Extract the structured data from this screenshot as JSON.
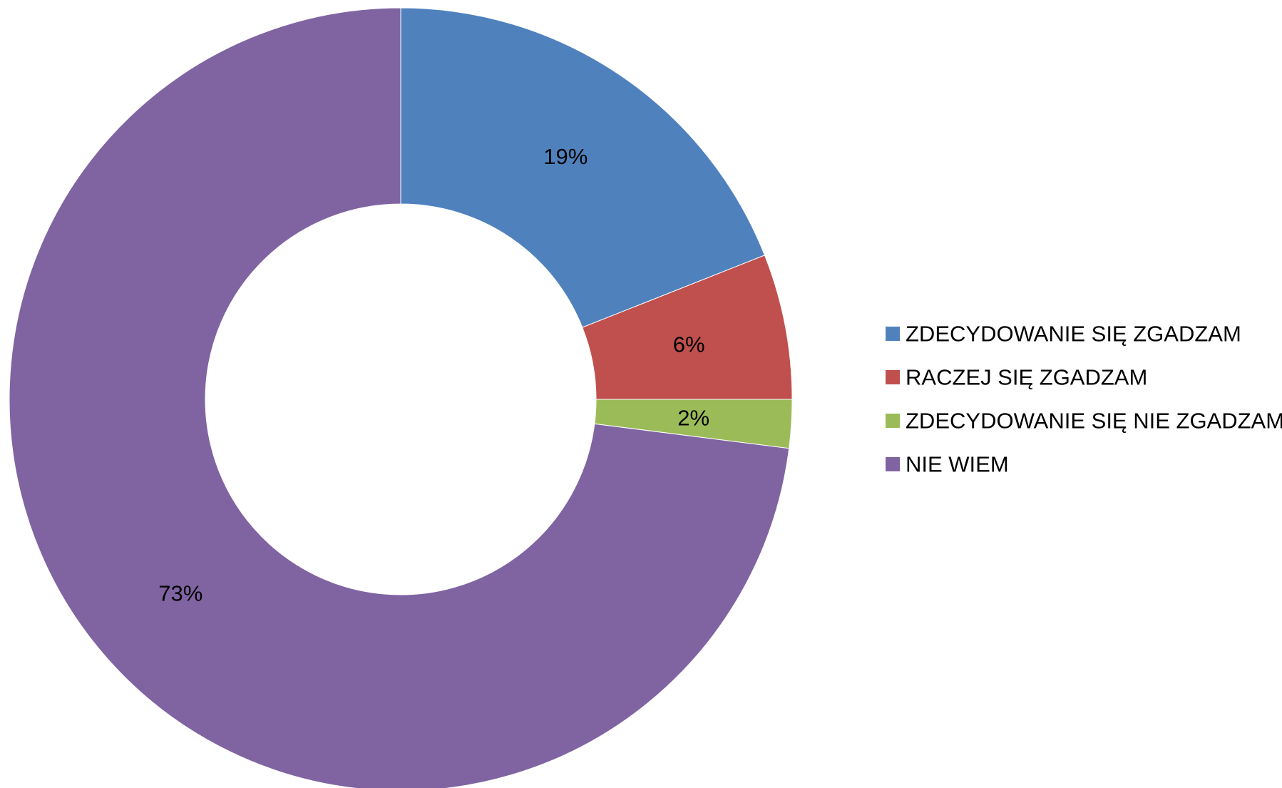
{
  "chart_data": {
    "type": "pie",
    "variant": "donut",
    "legend_position": "right",
    "series": [
      {
        "name": "ZDECYDOWANIE SIĘ ZGADZAM",
        "value": 19,
        "label": "19%",
        "color": "#4f81bd"
      },
      {
        "name": "RACZEJ SIĘ ZGADZAM",
        "value": 6,
        "label": "6%",
        "color": "#c0504d"
      },
      {
        "name": "ZDECYDOWANIE SIĘ NIE ZGADZAM",
        "value": 2,
        "label": "2%",
        "color": "#9bbb59"
      },
      {
        "name": "NIE WIEM",
        "value": 73,
        "label": "73%",
        "color": "#8064a2"
      }
    ]
  }
}
